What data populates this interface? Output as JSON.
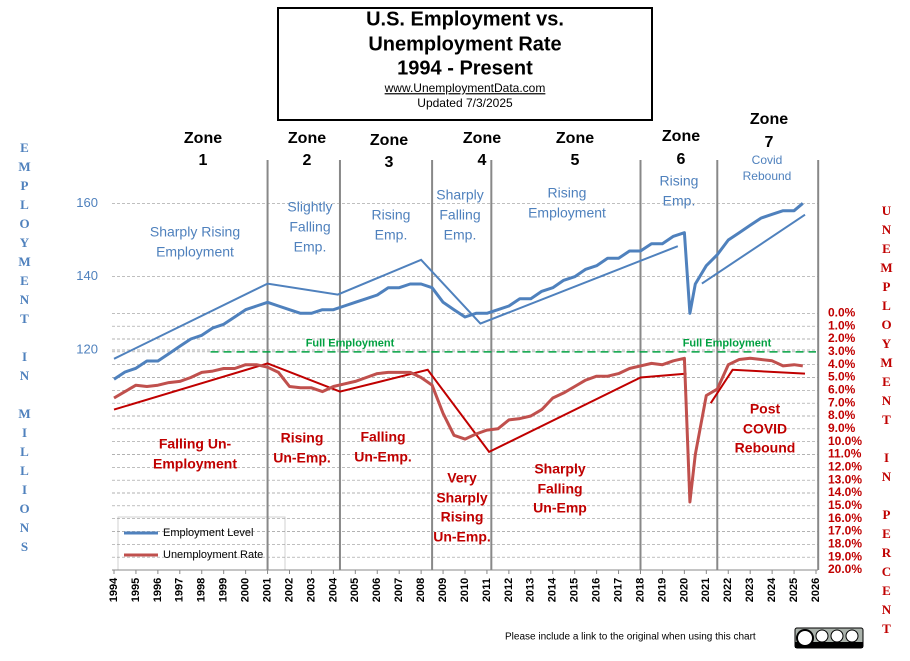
{
  "chart_data": {
    "type": "line",
    "title": [
      "U.S. Employment vs.",
      "Unemployment Rate",
      "1994 - Present"
    ],
    "source": "www.UnemploymentData.com",
    "updated": "Updated 7/3/2025",
    "y_label": "EMPLOYMENT IN MILLIONS",
    "y2_label": "UNEMPLOYMENT IN PERCENT",
    "footer": "Please include a link to the original when using this chart",
    "xlim": [
      1994,
      2026
    ],
    "xticks": [
      1994,
      1995,
      1996,
      1997,
      1998,
      1999,
      2000,
      2001,
      2002,
      2003,
      2004,
      2005,
      2006,
      2007,
      2008,
      2009,
      2010,
      2011,
      2012,
      2013,
      2014,
      2015,
      2016,
      2017,
      2018,
      2019,
      2020,
      2021,
      2022,
      2023,
      2024,
      2025,
      2026
    ],
    "ylim": [
      60,
      165
    ],
    "yticks": [
      120,
      140,
      160
    ],
    "y2lim": [
      20,
      -10
    ],
    "y2ticks": [
      {
        "value": 0,
        "label": "0.0%"
      },
      {
        "value": 1,
        "label": "1.0%"
      },
      {
        "value": 2,
        "label": "2.0%"
      },
      {
        "value": 3,
        "label": "3.0%"
      },
      {
        "value": 4,
        "label": "4.0%"
      },
      {
        "value": 5,
        "label": "5.0%"
      },
      {
        "value": 6,
        "label": "6.0%"
      },
      {
        "value": 7,
        "label": "7.0%"
      },
      {
        "value": 8,
        "label": "8.0%"
      },
      {
        "value": 9,
        "label": "9.0%"
      },
      {
        "value": 10,
        "label": "10.0%"
      },
      {
        "value": 11,
        "label": "11.0%"
      },
      {
        "value": 12,
        "label": "12.0%"
      },
      {
        "value": 13,
        "label": "13.0%"
      },
      {
        "value": 14,
        "label": "14.0%"
      },
      {
        "value": 15,
        "label": "15.0%"
      },
      {
        "value": 16,
        "label": "16.0%"
      },
      {
        "value": 17,
        "label": "17.0%"
      },
      {
        "value": 18,
        "label": "18.0%"
      },
      {
        "value": 19,
        "label": "19.0%"
      },
      {
        "value": 20,
        "label": "20.0%"
      }
    ],
    "grid": true,
    "x": [
      1994,
      1994.5,
      1995,
      1995.5,
      1996,
      1996.5,
      1997,
      1997.5,
      1998,
      1998.5,
      1999,
      1999.5,
      2000,
      2000.5,
      2001,
      2001.5,
      2002,
      2002.5,
      2003,
      2003.5,
      2004,
      2004.5,
      2005,
      2005.5,
      2006,
      2006.5,
      2007,
      2007.5,
      2008,
      2008.5,
      2009,
      2009.5,
      2010,
      2010.5,
      2011,
      2011.5,
      2012,
      2012.5,
      2013,
      2013.5,
      2014,
      2014.5,
      2015,
      2015.5,
      2016,
      2016.5,
      2017,
      2017.5,
      2018,
      2018.5,
      2019,
      2019.5,
      2020,
      2020.25,
      2020.5,
      2021,
      2021.5,
      2022,
      2022.5,
      2023,
      2023.5,
      2024,
      2024.5,
      2025,
      2025.4
    ],
    "series": [
      {
        "name": "Employment Level",
        "color": "#4f81bd",
        "axis": "y",
        "values": [
          112,
          114,
          115,
          117,
          117,
          119,
          121,
          123,
          124,
          126,
          127,
          129,
          131,
          132,
          133,
          132,
          131,
          130,
          130,
          131,
          131,
          132,
          133,
          134,
          135,
          137,
          137,
          138,
          138,
          137,
          133,
          131,
          129,
          130,
          130,
          131,
          132,
          134,
          134,
          136,
          137,
          139,
          140,
          142,
          143,
          145,
          145,
          147,
          147,
          149,
          149,
          151,
          152,
          130,
          138,
          143,
          146,
          150,
          152,
          154,
          156,
          157,
          158,
          158,
          160
        ]
      },
      {
        "name": "Unemployment Rate",
        "color": "#c0504d",
        "axis": "y2",
        "values": [
          6.6,
          6.1,
          5.6,
          5.7,
          5.6,
          5.4,
          5.3,
          5.0,
          4.6,
          4.5,
          4.3,
          4.3,
          4.0,
          4.0,
          4.2,
          4.6,
          5.7,
          5.8,
          5.8,
          6.1,
          5.7,
          5.5,
          5.3,
          5.0,
          4.7,
          4.6,
          4.6,
          4.6,
          5.0,
          5.6,
          7.8,
          9.5,
          9.8,
          9.4,
          9.1,
          9.0,
          8.3,
          8.2,
          8.0,
          7.5,
          6.6,
          6.2,
          5.7,
          5.2,
          4.9,
          4.9,
          4.7,
          4.3,
          4.1,
          3.9,
          4.0,
          3.7,
          3.5,
          14.7,
          11.0,
          6.4,
          5.9,
          4.0,
          3.6,
          3.5,
          3.6,
          3.7,
          4.1,
          4.0,
          4.1
        ]
      }
    ],
    "trend_lines": [
      {
        "axis": "y",
        "color": "#4f81bd",
        "x": [
          1994,
          2001,
          2004.2,
          2008,
          2010.7,
          2019.7,
          null,
          2020.8,
          2025.5
        ],
        "values": [
          117.6,
          138.1,
          135.1,
          144.6,
          127.2,
          148.3,
          null,
          138.1,
          156.9
        ]
      },
      {
        "axis": "y2",
        "color": "#c00000",
        "x": [
          1994,
          2001,
          2004.3,
          2008.3,
          2011.1,
          2018,
          2020.1,
          null,
          2021.2,
          2022.2,
          2025.5
        ],
        "values": [
          7.5,
          3.9,
          6.1,
          4.4,
          10.8,
          5.0,
          4.7,
          null,
          7.0,
          4.4,
          4.7
        ]
      }
    ],
    "full_employment": {
      "label": "Full Employment",
      "value": 3,
      "x": [
        1998.4,
        2026
      ],
      "color": "#00a040"
    },
    "zone_boundaries": [
      2001,
      2004.3,
      2008.5,
      2011.2,
      2018,
      2021.5,
      2026.1
    ],
    "zones": [
      {
        "label": "Zone",
        "number": "1",
        "employment_note": [
          "Sharply Rising",
          "Employment"
        ],
        "unemployment_note": [
          "Falling Un-",
          "Employment"
        ]
      },
      {
        "label": "Zone",
        "number": "2",
        "employment_note": [
          "Slightly",
          "Falling",
          "Emp."
        ],
        "unemployment_note": [
          "Rising",
          "Un-Emp."
        ]
      },
      {
        "label": "Zone",
        "number": "3",
        "employment_note": [
          "Rising",
          "Emp."
        ],
        "unemployment_note": [
          "Falling",
          "Un-Emp."
        ]
      },
      {
        "label": "Zone",
        "number": "4",
        "employment_note": [
          "Sharply",
          "Falling",
          "Emp."
        ],
        "unemployment_note": [
          "Very",
          "Sharply",
          "Rising",
          "Un-Emp."
        ]
      },
      {
        "label": "Zone",
        "number": "5",
        "employment_note": [
          "Rising",
          "Employment"
        ],
        "unemployment_note": [
          "Sharply",
          "Falling",
          "Un-Emp"
        ]
      },
      {
        "label": "Zone",
        "number": "6",
        "employment_note": [
          "Rising",
          "Emp."
        ]
      },
      {
        "label": "Zone",
        "number": "7",
        "employment_note": [
          "Covid",
          "Rebound"
        ],
        "unemployment_note": [
          "Post",
          "COVID",
          "Rebound"
        ]
      }
    ]
  }
}
